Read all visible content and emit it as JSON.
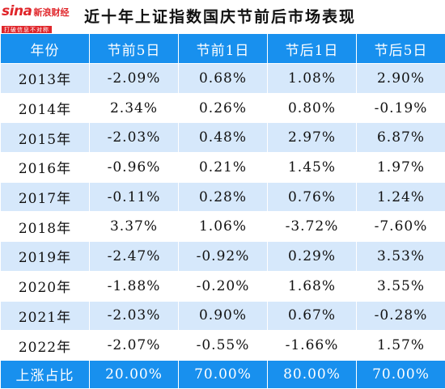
{
  "logo": {
    "brand": "sina",
    "name": "新浪财经",
    "tagline": "打破信息不对称"
  },
  "title": "近十年上证指数国庆节前后市场表现",
  "colors": {
    "header_bg": "#1890ee",
    "row_alt": "#d6e8fb",
    "logo_red": "#e0262b"
  },
  "table": {
    "headers": [
      "年份",
      "节前5日",
      "节前1日",
      "节后1日",
      "节后5日"
    ],
    "rows": [
      [
        "2013年",
        "-2.09%",
        "0.68%",
        "1.08%",
        "2.90%"
      ],
      [
        "2014年",
        "2.34%",
        "0.26%",
        "0.80%",
        "-0.19%"
      ],
      [
        "2015年",
        "-2.03%",
        "0.48%",
        "2.97%",
        "6.87%"
      ],
      [
        "2016年",
        "-0.96%",
        "0.21%",
        "1.45%",
        "1.97%"
      ],
      [
        "2017年",
        "-0.11%",
        "0.28%",
        "0.76%",
        "1.24%"
      ],
      [
        "2018年",
        "3.37%",
        "1.06%",
        "-3.72%",
        "-7.60%"
      ],
      [
        "2019年",
        "-2.47%",
        "-0.92%",
        "0.29%",
        "3.53%"
      ],
      [
        "2020年",
        "-1.88%",
        "-0.20%",
        "1.68%",
        "3.55%"
      ],
      [
        "2021年",
        "-2.03%",
        "0.90%",
        "0.67%",
        "-0.28%"
      ],
      [
        "2022年",
        "-2.07%",
        "-0.55%",
        "-1.66%",
        "1.57%"
      ]
    ],
    "footer": [
      "上涨占比",
      "20.00%",
      "70.00%",
      "80.00%",
      "70.00%"
    ]
  }
}
